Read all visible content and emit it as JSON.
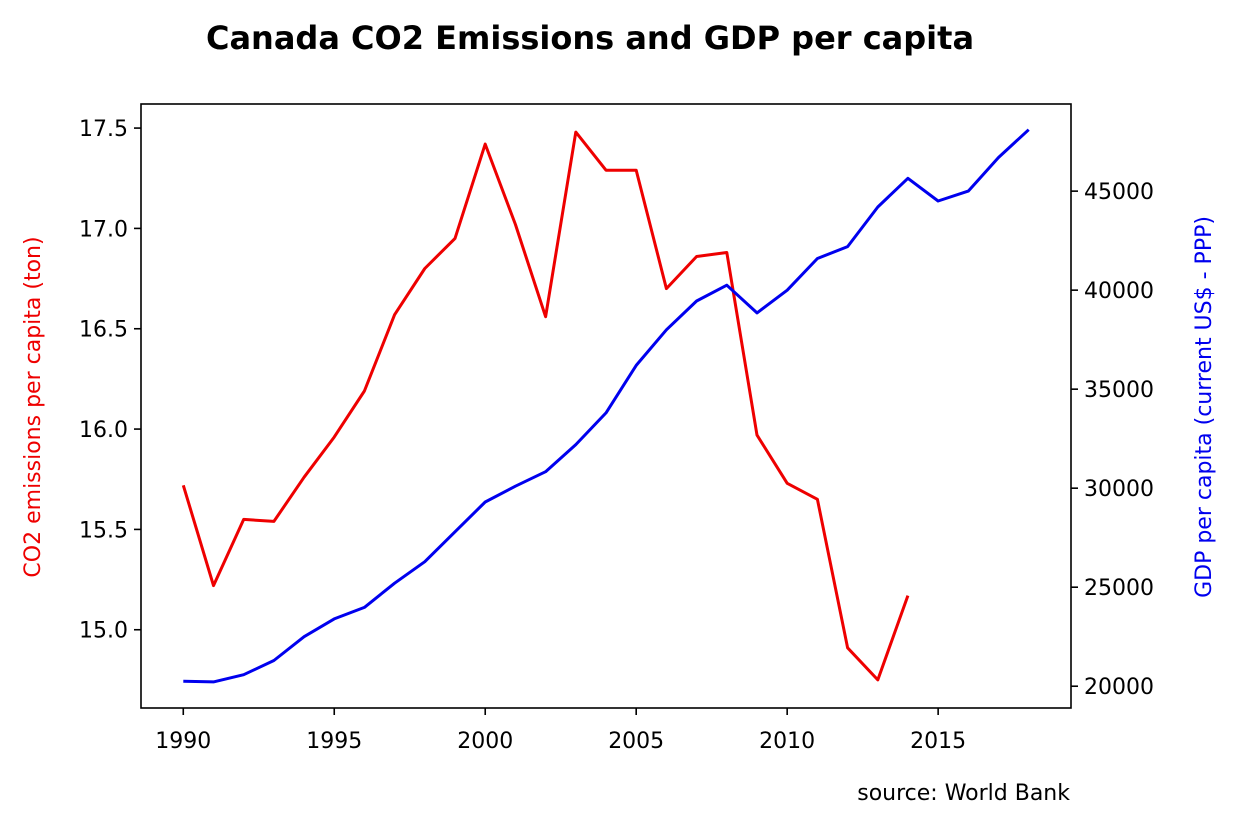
{
  "chart_data": {
    "type": "line",
    "title": "Canada CO2 Emissions and GDP per capita",
    "source": "source: World Bank",
    "x_ticks": [
      "1990",
      "1995",
      "2000",
      "2005",
      "2010",
      "2015"
    ],
    "xlim": [
      1988.6,
      2019.4
    ],
    "grid": false,
    "legend": "none",
    "left_axis": {
      "label": "CO2 emissions per capita (ton)",
      "color": "#ee0000",
      "ylim": [
        14.61,
        17.62
      ],
      "ticks": [
        "15.0",
        "15.5",
        "16.0",
        "16.5",
        "17.0",
        "17.5"
      ]
    },
    "right_axis": {
      "label": "GDP per capita (current US$ - PPP)",
      "color": "#0000ee",
      "ylim": [
        18900,
        49400
      ],
      "ticks": [
        "20000",
        "25000",
        "30000",
        "35000",
        "40000",
        "45000"
      ]
    },
    "series": [
      {
        "axis": "left",
        "color": "#ee0000",
        "x": [
          1990,
          1991,
          1992,
          1993,
          1994,
          1995,
          1996,
          1997,
          1998,
          1999,
          2000,
          2001,
          2002,
          2003,
          2004,
          2005,
          2006,
          2007,
          2008,
          2009,
          2010,
          2011,
          2012,
          2013,
          2014
        ],
        "values": [
          15.72,
          15.22,
          15.55,
          15.54,
          15.76,
          15.96,
          16.19,
          16.57,
          16.8,
          16.95,
          17.42,
          17.02,
          16.56,
          17.48,
          17.29,
          17.29,
          16.7,
          16.86,
          16.88,
          15.97,
          15.73,
          15.65,
          14.91,
          14.75,
          15.17
        ]
      },
      {
        "axis": "right",
        "color": "#0000ee",
        "x": [
          1990,
          1991,
          1992,
          1993,
          1994,
          1995,
          1996,
          1997,
          1998,
          1999,
          2000,
          2001,
          2002,
          2003,
          2004,
          2005,
          2006,
          2007,
          2008,
          2009,
          2010,
          2011,
          2012,
          2013,
          2014,
          2015,
          2016,
          2017,
          2018
        ],
        "values": [
          20250,
          20220,
          20580,
          21300,
          22500,
          23400,
          23980,
          25200,
          26290,
          27800,
          29300,
          30100,
          30830,
          32200,
          33800,
          36200,
          38000,
          39450,
          40250,
          38850,
          40000,
          41600,
          42200,
          44200,
          45650,
          44500,
          45000,
          46700,
          48100
        ]
      }
    ]
  }
}
